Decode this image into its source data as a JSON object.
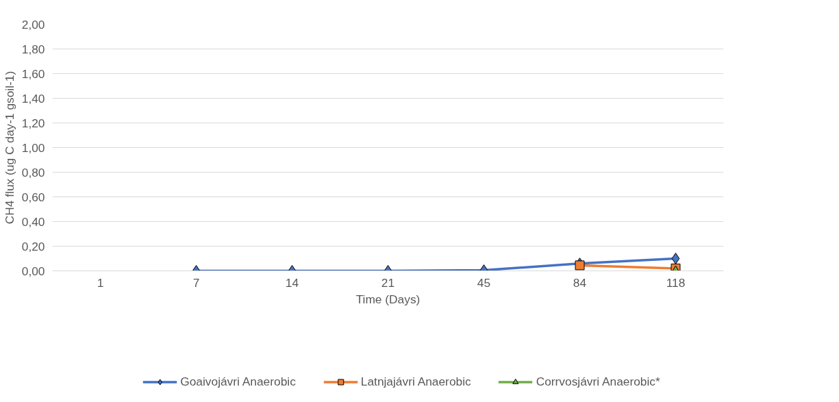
{
  "chart_data": {
    "type": "line",
    "xlabel": "Time (Days)",
    "ylabel": "CH4 flux (ug C day-1 gsoil-1)",
    "categories": [
      "1",
      "7",
      "14",
      "21",
      "45",
      "84",
      "118"
    ],
    "series": [
      {
        "name": "Goaivojávri Anaerobic",
        "color": "#4472c4",
        "marker": "diamond",
        "values": [
          null,
          0.0,
          0.0,
          0.0,
          0.005,
          0.06,
          0.1
        ]
      },
      {
        "name": "Latnjajávri Anaerobic",
        "color": "#ed7d31",
        "marker": "square",
        "values": [
          null,
          null,
          null,
          null,
          null,
          0.045,
          0.02
        ]
      },
      {
        "name": "Corrvosjávri Anaerobic*",
        "color": "#70ad47",
        "marker": "triangle",
        "values": [
          null,
          null,
          null,
          null,
          null,
          null,
          0.0
        ]
      }
    ],
    "ylim": [
      0,
      2
    ],
    "yticks": [
      {
        "value": 0,
        "label": "0,00"
      },
      {
        "value": 0.2,
        "label": "0,20"
      },
      {
        "value": 0.4,
        "label": "0,40"
      },
      {
        "value": 0.6,
        "label": "0,60"
      },
      {
        "value": 0.8,
        "label": "0,80"
      },
      {
        "value": 1.0,
        "label": "1,00"
      },
      {
        "value": 1.2,
        "label": "1,20"
      },
      {
        "value": 1.4,
        "label": "1,40"
      },
      {
        "value": 1.6,
        "label": "1,60"
      },
      {
        "value": 1.8,
        "label": "1,80"
      },
      {
        "value": 2.0,
        "label": "2,00"
      }
    ],
    "grid": "y",
    "legend": "bottom",
    "line_style": "solid"
  }
}
